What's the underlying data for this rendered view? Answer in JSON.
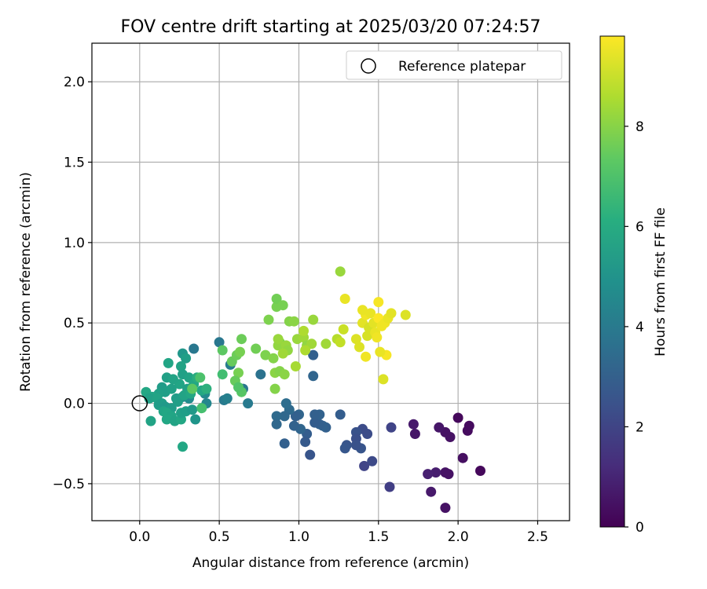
{
  "chart_data": {
    "type": "scatter",
    "title": "FOV centre drift starting at 2025/03/20 07:24:57",
    "xlabel": "Angular distance from reference (arcmin)",
    "ylabel": "Rotation from reference (arcmin)",
    "xlim": [
      -0.3,
      2.7
    ],
    "ylim": [
      -0.73,
      2.24
    ],
    "x_ticks": [
      "0.0",
      "0.5",
      "1.0",
      "1.5",
      "2.0",
      "2.5"
    ],
    "y_ticks": [
      "−0.5",
      "0.0",
      "0.5",
      "1.0",
      "1.5",
      "2.0"
    ],
    "grid": true,
    "legend": {
      "placement": "top-right",
      "entries": [
        "Reference platepar"
      ]
    },
    "reference_point": {
      "x": 0.0,
      "y": 0.0,
      "marker": "hollow-circle"
    },
    "colorbar": {
      "label": "Hours from first FF file",
      "colormap": "viridis",
      "range": [
        0,
        9.8
      ],
      "ticks": [
        "0",
        "2",
        "4",
        "6",
        "8"
      ]
    },
    "points": [
      [
        2.0,
        -0.09,
        0.2
      ],
      [
        2.07,
        -0.14,
        0.3
      ],
      [
        2.06,
        -0.17,
        0.3
      ],
      [
        1.92,
        -0.18,
        0.5
      ],
      [
        1.95,
        -0.21,
        0.5
      ],
      [
        1.88,
        -0.15,
        0.6
      ],
      [
        1.72,
        -0.13,
        0.7
      ],
      [
        1.73,
        -0.19,
        0.6
      ],
      [
        2.03,
        -0.34,
        0.4
      ],
      [
        2.14,
        -0.42,
        0.2
      ],
      [
        1.94,
        -0.44,
        0.5
      ],
      [
        1.92,
        -0.43,
        0.5
      ],
      [
        1.86,
        -0.43,
        0.8
      ],
      [
        1.81,
        -0.44,
        0.9
      ],
      [
        1.83,
        -0.55,
        0.7
      ],
      [
        1.92,
        -0.65,
        0.5
      ],
      [
        1.57,
        -0.52,
        1.8
      ],
      [
        1.58,
        -0.15,
        2.0
      ],
      [
        1.46,
        -0.36,
        2.2
      ],
      [
        1.41,
        -0.39,
        2.0
      ],
      [
        1.43,
        -0.19,
        2.3
      ],
      [
        1.4,
        -0.16,
        2.3
      ],
      [
        1.36,
        -0.18,
        2.5
      ],
      [
        1.36,
        -0.22,
        2.4
      ],
      [
        1.39,
        -0.28,
        2.6
      ],
      [
        1.36,
        -0.26,
        2.5
      ],
      [
        1.3,
        -0.26,
        2.6
      ],
      [
        1.29,
        -0.28,
        2.7
      ],
      [
        1.26,
        -0.07,
        2.9
      ],
      [
        1.17,
        -0.15,
        3.0
      ],
      [
        1.15,
        -0.14,
        3.1
      ],
      [
        1.13,
        -0.13,
        3.0
      ],
      [
        1.1,
        -0.12,
        2.9
      ],
      [
        1.13,
        -0.07,
        3.1
      ],
      [
        1.1,
        -0.07,
        3.0
      ],
      [
        1.07,
        -0.32,
        2.6
      ],
      [
        1.05,
        -0.19,
        2.9
      ],
      [
        1.04,
        -0.24,
        2.8
      ],
      [
        1.0,
        -0.07,
        3.2
      ],
      [
        0.98,
        -0.08,
        3.0
      ],
      [
        1.01,
        -0.16,
        3.2
      ],
      [
        0.97,
        -0.14,
        3.1
      ],
      [
        0.94,
        -0.04,
        3.4
      ],
      [
        0.91,
        -0.08,
        3.3
      ],
      [
        0.86,
        -0.08,
        3.4
      ],
      [
        0.86,
        -0.13,
        3.3
      ],
      [
        0.91,
        -0.25,
        3.0
      ],
      [
        0.92,
        0.0,
        3.5
      ],
      [
        1.09,
        0.3,
        3.0
      ],
      [
        1.09,
        0.17,
        3.2
      ],
      [
        0.76,
        0.18,
        3.7
      ],
      [
        0.68,
        0.0,
        4.0
      ],
      [
        0.65,
        0.09,
        3.9
      ],
      [
        0.53,
        0.02,
        4.0
      ],
      [
        0.55,
        0.03,
        4.2
      ],
      [
        0.5,
        0.38,
        3.9
      ],
      [
        0.57,
        0.24,
        4.1
      ],
      [
        0.42,
        0.0,
        4.5
      ],
      [
        0.41,
        0.06,
        4.6
      ],
      [
        0.34,
        0.34,
        3.9
      ],
      [
        0.31,
        0.03,
        4.7
      ],
      [
        0.27,
        0.04,
        4.8
      ],
      [
        0.27,
        0.31,
        5.2
      ],
      [
        0.29,
        0.28,
        5.5
      ],
      [
        0.26,
        0.23,
        5.7
      ],
      [
        0.27,
        0.18,
        5.6
      ],
      [
        0.25,
        0.12,
        5.8
      ],
      [
        0.31,
        0.16,
        5.7
      ],
      [
        0.34,
        0.12,
        5.9
      ],
      [
        0.36,
        0.16,
        6.1
      ],
      [
        0.18,
        0.25,
        5.8
      ],
      [
        0.17,
        0.16,
        5.6
      ],
      [
        0.21,
        0.15,
        5.7
      ],
      [
        0.14,
        0.1,
        5.4
      ],
      [
        0.16,
        0.07,
        5.5
      ],
      [
        0.2,
        0.09,
        5.6
      ],
      [
        0.23,
        0.03,
        5.4
      ],
      [
        0.24,
        0.01,
        5.5
      ],
      [
        0.3,
        0.09,
        5.6
      ],
      [
        0.28,
        0.05,
        5.7
      ],
      [
        0.32,
        0.06,
        5.9
      ],
      [
        0.12,
        0.06,
        5.6
      ],
      [
        0.08,
        0.04,
        5.8
      ],
      [
        0.04,
        0.07,
        5.9
      ],
      [
        0.06,
        0.03,
        5.6
      ],
      [
        0.11,
        0.03,
        5.7
      ],
      [
        0.14,
        0.0,
        5.5
      ],
      [
        0.12,
        -0.01,
        5.4
      ],
      [
        0.16,
        -0.02,
        5.3
      ],
      [
        0.2,
        -0.03,
        5.4
      ],
      [
        0.15,
        -0.05,
        5.8
      ],
      [
        0.17,
        -0.06,
        5.9
      ],
      [
        0.2,
        -0.08,
        5.8
      ],
      [
        0.17,
        -0.1,
        5.9
      ],
      [
        0.22,
        -0.11,
        5.7
      ],
      [
        0.26,
        -0.1,
        5.9
      ],
      [
        0.26,
        -0.06,
        5.6
      ],
      [
        0.29,
        -0.05,
        5.5
      ],
      [
        0.33,
        -0.04,
        5.3
      ],
      [
        0.35,
        -0.1,
        5.1
      ],
      [
        0.07,
        -0.11,
        5.7
      ],
      [
        0.27,
        -0.27,
        5.9
      ],
      [
        0.39,
        0.08,
        5.9
      ],
      [
        0.42,
        0.09,
        6.2
      ],
      [
        0.52,
        0.18,
        6.8
      ],
      [
        0.39,
        -0.03,
        6.9
      ],
      [
        0.33,
        0.09,
        7.3
      ],
      [
        0.38,
        0.16,
        7.0
      ],
      [
        0.52,
        0.33,
        7.3
      ],
      [
        0.58,
        0.26,
        7.5
      ],
      [
        0.61,
        0.3,
        7.6
      ],
      [
        0.63,
        0.32,
        7.8
      ],
      [
        0.64,
        0.4,
        7.6
      ],
      [
        0.62,
        0.19,
        7.8
      ],
      [
        0.6,
        0.14,
        7.5
      ],
      [
        0.64,
        0.07,
        7.2
      ],
      [
        0.62,
        0.1,
        7.1
      ],
      [
        0.73,
        0.34,
        7.7
      ],
      [
        0.79,
        0.3,
        7.9
      ],
      [
        0.84,
        0.28,
        8.0
      ],
      [
        0.85,
        0.19,
        8.1
      ],
      [
        0.85,
        0.09,
        8.0
      ],
      [
        0.88,
        0.2,
        8.0
      ],
      [
        0.91,
        0.18,
        8.1
      ],
      [
        0.88,
        0.38,
        7.9
      ],
      [
        0.87,
        0.36,
        8.2
      ],
      [
        0.92,
        0.36,
        8.3
      ],
      [
        0.93,
        0.33,
        8.2
      ],
      [
        0.9,
        0.31,
        8.4
      ],
      [
        0.87,
        0.4,
        8.3
      ],
      [
        0.86,
        0.6,
        7.8
      ],
      [
        0.86,
        0.65,
        7.7
      ],
      [
        0.9,
        0.61,
        7.8
      ],
      [
        0.81,
        0.52,
        7.9
      ],
      [
        0.94,
        0.51,
        8.0
      ],
      [
        0.97,
        0.51,
        8.1
      ],
      [
        0.99,
        0.4,
        8.3
      ],
      [
        1.03,
        0.41,
        8.4
      ],
      [
        1.05,
        0.36,
        8.2
      ],
      [
        1.03,
        0.45,
        8.6
      ],
      [
        1.09,
        0.52,
        8.3
      ],
      [
        1.08,
        0.37,
        8.4
      ],
      [
        0.98,
        0.23,
        8.5
      ],
      [
        1.04,
        0.33,
        8.6
      ],
      [
        1.17,
        0.37,
        8.4
      ],
      [
        1.24,
        0.4,
        8.7
      ],
      [
        1.26,
        0.38,
        8.9
      ],
      [
        1.28,
        0.46,
        9.0
      ],
      [
        1.26,
        0.82,
        8.3
      ],
      [
        1.29,
        0.65,
        9.5
      ],
      [
        1.36,
        0.4,
        9.3
      ],
      [
        1.38,
        0.35,
        9.3
      ],
      [
        1.4,
        0.5,
        9.4
      ],
      [
        1.42,
        0.55,
        9.6
      ],
      [
        1.4,
        0.58,
        9.5
      ],
      [
        1.43,
        0.42,
        9.2
      ],
      [
        1.44,
        0.47,
        9.2
      ],
      [
        1.45,
        0.56,
        9.5
      ],
      [
        1.47,
        0.5,
        9.4
      ],
      [
        1.48,
        0.44,
        9.5
      ],
      [
        1.49,
        0.41,
        9.6
      ],
      [
        1.5,
        0.63,
        9.7
      ],
      [
        1.5,
        0.53,
        9.8
      ],
      [
        1.52,
        0.48,
        9.6
      ],
      [
        1.54,
        0.5,
        9.6
      ],
      [
        1.56,
        0.53,
        9.5
      ],
      [
        1.58,
        0.56,
        9.4
      ],
      [
        1.55,
        0.3,
        9.7
      ],
      [
        1.51,
        0.32,
        9.5
      ],
      [
        1.53,
        0.15,
        9.3
      ],
      [
        1.42,
        0.29,
        9.6
      ],
      [
        1.67,
        0.55,
        9.3
      ]
    ]
  }
}
